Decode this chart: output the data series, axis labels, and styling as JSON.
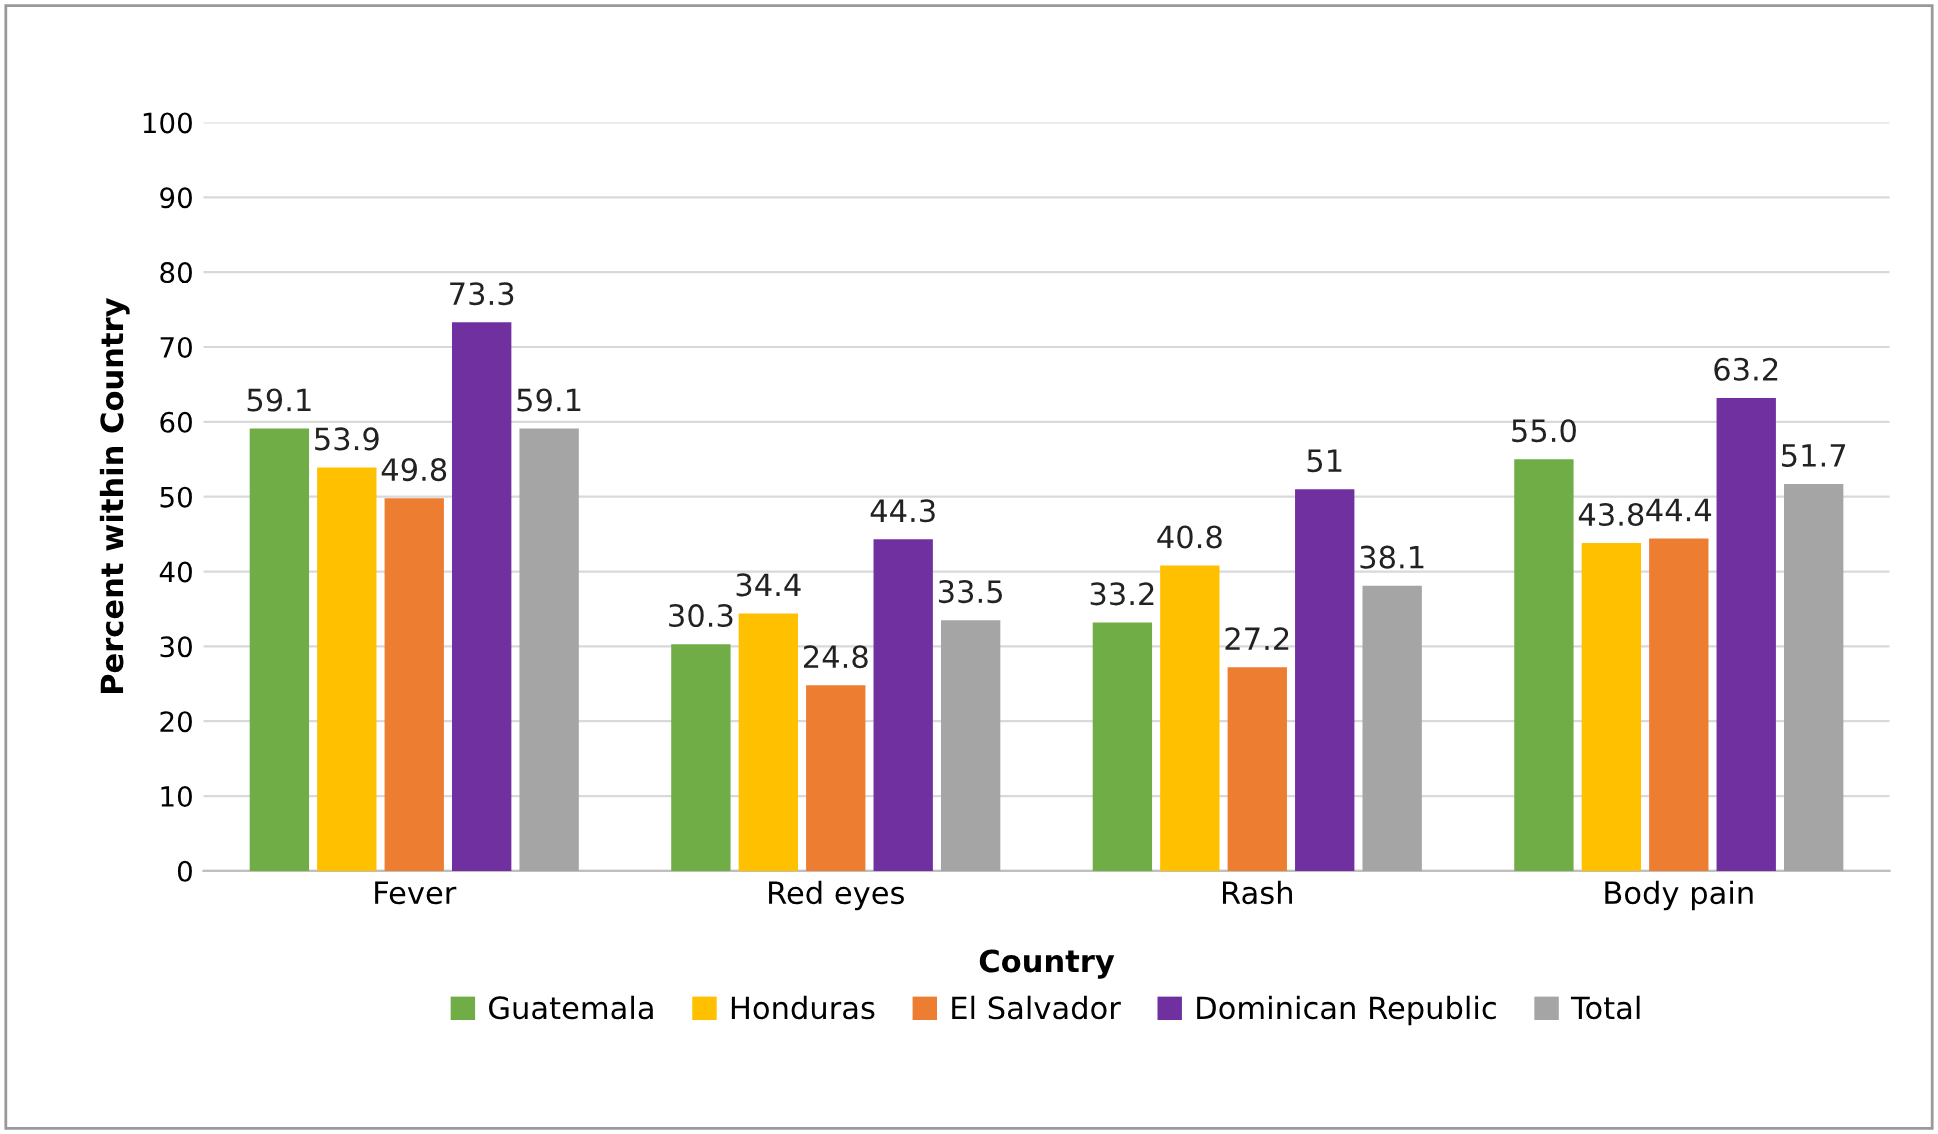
{
  "chart_data": {
    "type": "bar",
    "xlabel": "Country",
    "ylabel": "Percent within Country",
    "categories": [
      "Fever",
      "Red eyes",
      "Rash",
      "Body pain"
    ],
    "series": [
      {
        "name": "Guatemala",
        "color": "#70ad47",
        "values": [
          59.1,
          30.3,
          33.2,
          55.0
        ],
        "value_labels": [
          "59.1",
          "30.3",
          "33.2",
          "55.0"
        ]
      },
      {
        "name": "Honduras",
        "color": "#ffc000",
        "values": [
          53.9,
          34.4,
          40.8,
          43.8
        ],
        "value_labels": [
          "53.9",
          "34.4",
          "40.8",
          "43.8"
        ]
      },
      {
        "name": "El Salvador",
        "color": "#ed7d31",
        "values": [
          49.8,
          24.8,
          27.2,
          44.4
        ],
        "value_labels": [
          "49.8",
          "24.8",
          "27.2",
          "44.4"
        ]
      },
      {
        "name": "Dominican Republic",
        "color": "#7030a0",
        "values": [
          73.3,
          44.3,
          51,
          63.2
        ],
        "value_labels": [
          "73.3",
          "44.3",
          "51",
          "63.2"
        ]
      },
      {
        "name": "Total",
        "color": "#a5a5a5",
        "values": [
          59.1,
          33.5,
          38.1,
          51.7
        ],
        "value_labels": [
          "59.1",
          "33.5",
          "38.1",
          "51.7"
        ]
      }
    ],
    "ylim": [
      0,
      100
    ],
    "yticks": [
      0,
      10,
      20,
      30,
      40,
      50,
      60,
      70,
      80,
      90,
      100
    ],
    "grid": "y",
    "legend": "bottom"
  }
}
